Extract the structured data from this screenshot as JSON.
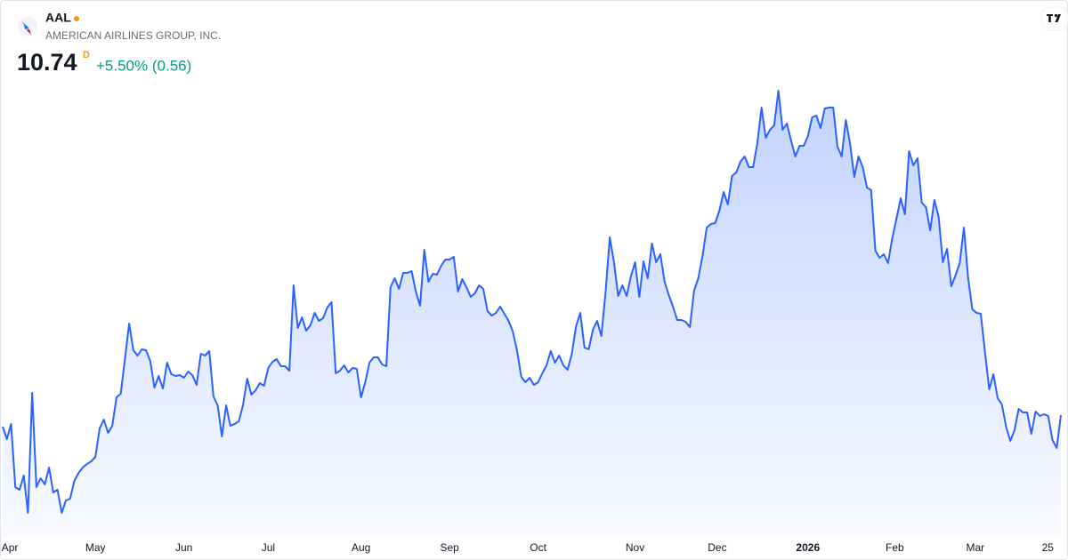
{
  "chart_data": {
    "type": "area",
    "title": "AAL",
    "subtitle": "AMERICAN AIRLINES GROUP, INC.",
    "annotations": [
      "10.74",
      "D",
      "+5.50% (0.56)"
    ],
    "color": "#2962ff",
    "values": [
      10.48,
      10.2,
      10.54,
      9.12,
      9.06,
      9.38,
      8.54,
      11.24,
      9.12,
      9.32,
      9.18,
      9.56,
      9.0,
      9.06,
      8.54,
      8.82,
      8.86,
      9.26,
      9.44,
      9.56,
      9.64,
      9.7,
      9.8,
      10.44,
      10.64,
      10.34,
      10.5,
      11.14,
      11.22,
      12.0,
      12.8,
      12.2,
      12.08,
      12.22,
      12.2,
      11.96,
      11.36,
      11.62,
      11.34,
      11.92,
      11.66,
      11.62,
      11.64,
      11.58,
      11.72,
      11.64,
      11.42,
      12.12,
      12.08,
      12.18,
      11.16,
      10.96,
      10.26,
      10.96,
      10.5,
      10.54,
      10.6,
      10.96,
      11.56,
      11.2,
      11.3,
      11.46,
      11.4,
      11.8,
      11.94,
      12.0,
      11.84,
      11.84,
      11.74,
      13.66,
      12.7,
      12.94,
      12.64,
      12.76,
      13.04,
      12.86,
      12.92,
      13.16,
      13.28,
      11.68,
      11.74,
      11.86,
      11.7,
      11.8,
      11.78,
      11.14,
      11.48,
      11.92,
      12.04,
      12.04,
      11.88,
      11.84,
      13.62,
      13.82,
      13.58,
      13.94,
      13.94,
      13.98,
      13.52,
      13.2,
      14.46,
      13.74,
      13.92,
      13.9,
      14.1,
      14.24,
      14.24,
      14.3,
      13.52,
      13.8,
      13.62,
      13.4,
      13.48,
      13.66,
      13.58,
      13.08,
      12.98,
      13.04,
      13.18,
      13.02,
      12.86,
      12.62,
      12.2,
      11.6,
      11.48,
      11.58,
      11.42,
      11.48,
      11.68,
      11.86,
      12.18,
      11.92,
      12.08,
      11.86,
      11.76,
      12.12,
      12.74,
      13.04,
      12.26,
      12.22,
      12.66,
      12.86,
      12.52,
      13.5,
      14.74,
      14.18,
      13.42,
      13.66,
      13.42,
      13.86,
      14.18,
      13.4,
      14.2,
      13.82,
      14.6,
      14.18,
      14.36,
      13.74,
      13.44,
      13.18,
      12.88,
      12.88,
      12.84,
      12.72,
      13.54,
      13.82,
      14.32,
      14.96,
      15.04,
      15.06,
      15.34,
      15.76,
      15.48,
      16.12,
      16.2,
      16.44,
      16.56,
      16.32,
      16.32,
      16.86,
      17.66,
      16.98,
      17.16,
      17.26,
      18.04,
      17.16,
      17.3,
      16.92,
      16.56,
      16.8,
      16.8,
      17.02,
      17.44,
      17.48,
      17.2,
      17.64,
      17.66,
      17.66,
      16.78,
      16.56,
      17.38,
      16.84,
      16.1,
      16.56,
      16.32,
      15.86,
      15.8,
      14.44,
      14.28,
      14.36,
      14.16,
      14.72,
      15.16,
      15.62,
      15.26,
      16.68,
      16.36,
      16.52,
      15.52,
      15.42,
      14.9,
      15.58,
      15.2,
      14.18,
      14.48,
      13.64,
      13.88,
      14.16,
      14.96,
      13.82,
      13.12,
      13.04,
      13.02,
      12.16,
      11.32,
      11.66,
      11.12,
      10.98,
      10.48,
      10.16,
      10.4,
      10.88,
      10.8,
      10.8,
      10.32,
      10.82,
      10.72,
      10.76,
      10.72,
      10.18,
      10.0,
      10.74
    ],
    "xlim": [
      0,
      251
    ],
    "xticks": [
      {
        "value": 1.7,
        "label": "Apr"
      },
      {
        "value": 22,
        "label": "May"
      },
      {
        "value": 43,
        "label": "Jun"
      },
      {
        "value": 63,
        "label": "Jul"
      },
      {
        "value": 85,
        "label": "Aug"
      },
      {
        "value": 106,
        "label": "Sep"
      },
      {
        "value": 127,
        "label": "Oct"
      },
      {
        "value": 150,
        "label": "Nov"
      },
      {
        "value": 169.5,
        "label": "Dec"
      },
      {
        "value": 191,
        "label": "2026"
      },
      {
        "value": 211.6,
        "label": "Feb"
      },
      {
        "value": 230.7,
        "label": "Mar"
      },
      {
        "value": 247.9,
        "label": "25"
      }
    ],
    "ylim": [
      8,
      18.3
    ],
    "grid": false
  }
}
